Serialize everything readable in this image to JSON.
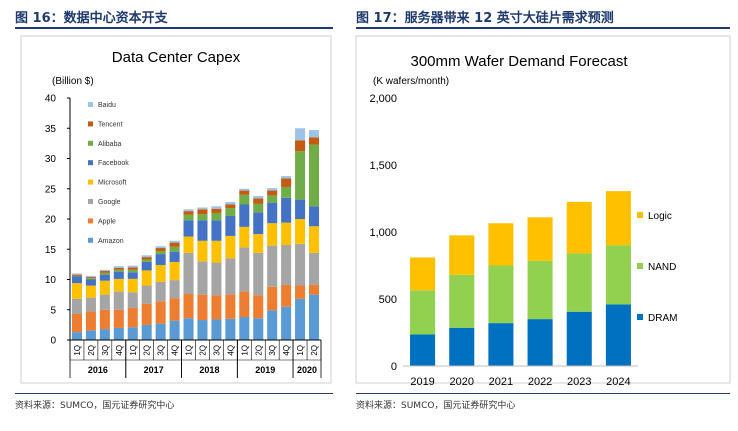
{
  "figures": [
    {
      "title": "图 16：数据中心资本开支",
      "source": "资料来源：SUMCO，国元证券研究中心"
    },
    {
      "title": "图 17：服务器带来 12 英寸大硅片需求预测",
      "source": "资料来源：SUMCO，国元证券研究中心"
    }
  ],
  "chart_data": [
    {
      "type": "bar",
      "stacked": true,
      "title": "Data Center Capex",
      "ylabel": "(Billion $)",
      "xlabel": "",
      "ylim": [
        0,
        40
      ],
      "yticks": [
        "0",
        "5",
        "10",
        "15",
        "20",
        "25",
        "30",
        "35",
        "40"
      ],
      "grid": false,
      "legend_position": "top-left",
      "categories": [
        "1Q",
        "2Q",
        "3Q",
        "4Q",
        "1Q",
        "2Q",
        "3Q",
        "4Q",
        "1Q",
        "2Q",
        "3Q",
        "4Q",
        "1Q",
        "2Q",
        "3Q",
        "4Q",
        "1Q",
        "2Q"
      ],
      "groups": [
        {
          "label": "2016",
          "start": 0,
          "end": 3
        },
        {
          "label": "2017",
          "start": 4,
          "end": 7
        },
        {
          "label": "2018",
          "start": 8,
          "end": 11
        },
        {
          "label": "2019",
          "start": 12,
          "end": 15
        },
        {
          "label": "2020",
          "start": 16,
          "end": 17
        }
      ],
      "series": [
        {
          "name": "Amazon",
          "color": "#5b9bd5",
          "values": [
            1.3,
            1.6,
            1.8,
            2.0,
            2.1,
            2.5,
            2.7,
            3.2,
            3.6,
            3.3,
            3.4,
            3.5,
            3.8,
            3.6,
            4.9,
            5.5,
            6.8,
            7.5
          ]
        },
        {
          "name": "Apple",
          "color": "#ed7d31",
          "values": [
            3.0,
            3.1,
            3.2,
            3.0,
            3.2,
            3.5,
            3.7,
            3.7,
            4.0,
            4.2,
            4.0,
            4.0,
            4.2,
            3.8,
            3.9,
            3.6,
            2.2,
            1.6
          ]
        },
        {
          "name": "Google",
          "color": "#a5a5a5",
          "values": [
            2.5,
            2.3,
            2.5,
            3.0,
            2.6,
            3.0,
            3.2,
            3.0,
            6.8,
            5.5,
            5.4,
            6.0,
            7.3,
            7.0,
            6.8,
            6.6,
            6.9,
            5.3
          ]
        },
        {
          "name": "Microsoft",
          "color": "#ffc000",
          "values": [
            2.6,
            2.0,
            2.3,
            2.1,
            2.2,
            2.5,
            2.8,
            3.0,
            2.7,
            3.4,
            3.6,
            3.7,
            3.4,
            3.1,
            3.7,
            3.7,
            4.1,
            4.4
          ]
        },
        {
          "name": "Facebook",
          "color": "#4472c4",
          "values": [
            1.1,
            1.0,
            1.0,
            1.2,
            1.1,
            1.4,
            1.8,
            1.7,
            2.7,
            3.4,
            3.4,
            3.3,
            3.7,
            3.6,
            3.4,
            4.1,
            3.2,
            3.3
          ]
        },
        {
          "name": "Alibaba",
          "color": "#70ad47",
          "values": [
            0.1,
            0.2,
            0.3,
            0.3,
            0.4,
            0.4,
            0.5,
            0.8,
            0.9,
            1.0,
            1.2,
            1.3,
            1.6,
            1.4,
            1.2,
            1.8,
            8.0,
            10.2
          ]
        },
        {
          "name": "Tencent",
          "color": "#c55a11",
          "values": [
            0.2,
            0.2,
            0.3,
            0.3,
            0.4,
            0.4,
            0.5,
            0.7,
            0.6,
            0.8,
            0.7,
            0.6,
            0.7,
            0.9,
            0.8,
            1.4,
            1.8,
            1.2
          ]
        },
        {
          "name": "Baidu",
          "color": "#9dc3e6",
          "values": [
            0.2,
            0.2,
            0.2,
            0.3,
            0.3,
            0.3,
            0.3,
            0.3,
            0.3,
            0.3,
            0.4,
            0.4,
            0.3,
            0.4,
            0.4,
            0.4,
            2.0,
            1.2
          ]
        }
      ]
    },
    {
      "type": "bar",
      "stacked": true,
      "title": "300mm Wafer Demand Forecast",
      "ylabel": "(K wafers/month)",
      "xlabel": "",
      "ylim": [
        0,
        2000
      ],
      "yticks": [
        "0",
        "500",
        "1,000",
        "1,500",
        "2,000"
      ],
      "grid": false,
      "legend_position": "right",
      "categories": [
        "2019",
        "2020",
        "2021",
        "2022",
        "2023",
        "2024"
      ],
      "series": [
        {
          "name": "DRAM",
          "color": "#0070c0",
          "values": [
            235,
            285,
            320,
            350,
            405,
            460
          ]
        },
        {
          "name": "NAND",
          "color": "#92d050",
          "values": [
            330,
            395,
            430,
            435,
            435,
            440
          ]
        },
        {
          "name": "Logic",
          "color": "#ffc000",
          "values": [
            245,
            295,
            315,
            325,
            385,
            405
          ]
        }
      ]
    }
  ]
}
